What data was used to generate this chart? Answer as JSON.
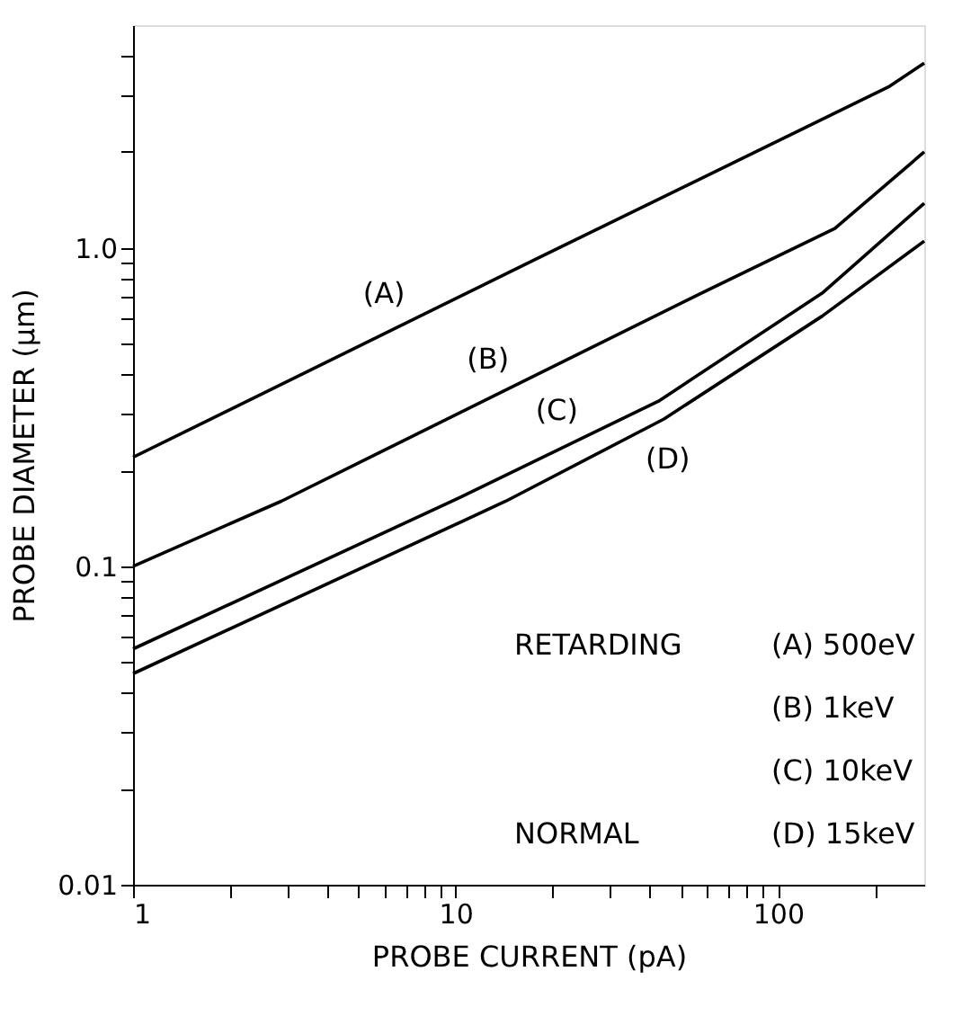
{
  "chart_data": {
    "type": "line",
    "xlabel": "PROBE CURRENT (pA)",
    "ylabel": "PROBE DIAMETER (μm)",
    "log": "xy",
    "grid": false,
    "legend": false,
    "line_style": "solid",
    "marker": "none",
    "xlim": [
      1,
      284
    ],
    "ylim": [
      0.01,
      5
    ],
    "xticks": [
      1,
      {
        "value": 2,
        "label": null
      },
      {
        "value": 3,
        "label": null
      },
      {
        "value": 4,
        "label": null
      },
      {
        "value": 5,
        "label": null
      },
      {
        "value": 6,
        "label": null
      },
      {
        "value": 7,
        "label": null
      },
      {
        "value": 8,
        "label": null
      },
      {
        "value": 9,
        "label": null
      },
      10,
      {
        "value": 20,
        "label": null
      },
      {
        "value": 30,
        "label": null
      },
      {
        "value": 40,
        "label": null
      },
      {
        "value": 50,
        "label": null
      },
      {
        "value": 60,
        "label": null
      },
      {
        "value": 70,
        "label": null
      },
      {
        "value": 80,
        "label": null
      },
      {
        "value": 90,
        "label": null
      },
      100,
      {
        "value": 200,
        "label": null
      }
    ],
    "yticks": [
      0.01,
      {
        "value": 0.02,
        "label": null
      },
      {
        "value": 0.03,
        "label": null
      },
      {
        "value": 0.04,
        "label": null
      },
      {
        "value": 0.05,
        "label": null
      },
      {
        "value": 0.06,
        "label": null
      },
      {
        "value": 0.07,
        "label": null
      },
      {
        "value": 0.08,
        "label": null
      },
      {
        "value": 0.09,
        "label": null
      },
      0.1,
      {
        "value": 0.2,
        "label": null
      },
      {
        "value": 0.3,
        "label": null
      },
      {
        "value": 0.4,
        "label": null
      },
      {
        "value": 0.5,
        "label": null
      },
      {
        "value": 0.6,
        "label": null
      },
      {
        "value": 0.7,
        "label": null
      },
      {
        "value": 0.8,
        "label": null
      },
      {
        "value": 0.9,
        "label": null
      },
      {
        "value": 1,
        "label": "1.0"
      },
      {
        "value": 2,
        "label": null
      },
      {
        "value": 3,
        "label": null
      },
      {
        "value": 4,
        "label": null
      }
    ],
    "series": [
      {
        "name": "(A)",
        "color": "#000000",
        "x": [
          1,
          17.7,
          220,
          284
        ],
        "values": [
          0.22,
          0.92,
          3.2,
          3.8
        ]
      },
      {
        "name": "(B)",
        "color": "#000000",
        "x": [
          1,
          2.88,
          57.8,
          150,
          284
        ],
        "values": [
          0.1,
          0.16,
          0.72,
          1.15,
          2.0
        ]
      },
      {
        "name": "(C)",
        "color": "#000000",
        "x": [
          1,
          9.75,
          42.6,
          137,
          284
        ],
        "values": [
          0.055,
          0.16,
          0.33,
          0.72,
          1.38
        ]
      },
      {
        "name": "(D)",
        "color": "#000000",
        "x": [
          1,
          14.3,
          44.3,
          137,
          284
        ],
        "values": [
          0.046,
          0.16,
          0.29,
          0.61,
          1.05
        ]
      }
    ],
    "annotations": [
      "RETARDING",
      "(A) 500eV",
      "(B) 1keV",
      "(C) 10keV",
      "NORMAL",
      "(D) 15keV"
    ]
  }
}
